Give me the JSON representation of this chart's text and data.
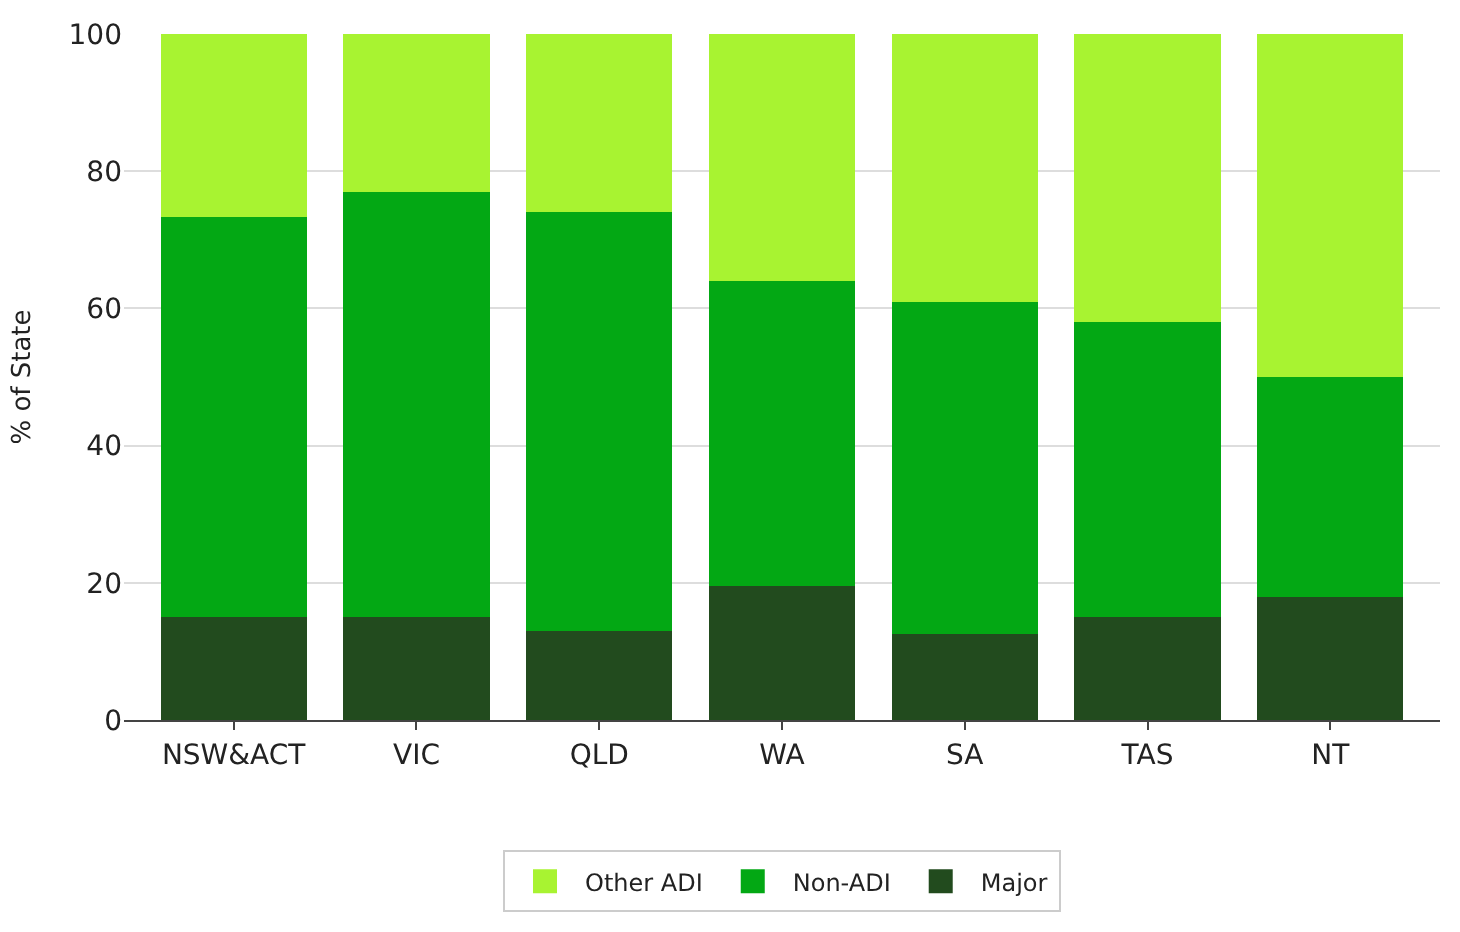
{
  "chart_data": {
    "type": "bar",
    "stacked": true,
    "ylabel": "% of State",
    "categories": [
      "NSW&ACT",
      "VIC",
      "QLD",
      "WA",
      "SA",
      "TAS",
      "NT"
    ],
    "series": [
      {
        "name": "Major",
        "color": "#224b1e",
        "values": [
          15,
          15,
          13,
          19.5,
          12.5,
          15,
          18
        ]
      },
      {
        "name": "Non-ADI",
        "color": "#03a814",
        "values": [
          58.3,
          62,
          61,
          44.5,
          48.5,
          43,
          32
        ]
      },
      {
        "name": "Other ADI",
        "color": "#a8f331",
        "values": [
          26.7,
          23,
          26,
          36,
          39,
          42,
          50
        ]
      }
    ],
    "ylim": [
      0,
      100
    ],
    "yticks": [
      0,
      20,
      40,
      60,
      80,
      100
    ],
    "grid": "y",
    "legend": "bottom"
  }
}
